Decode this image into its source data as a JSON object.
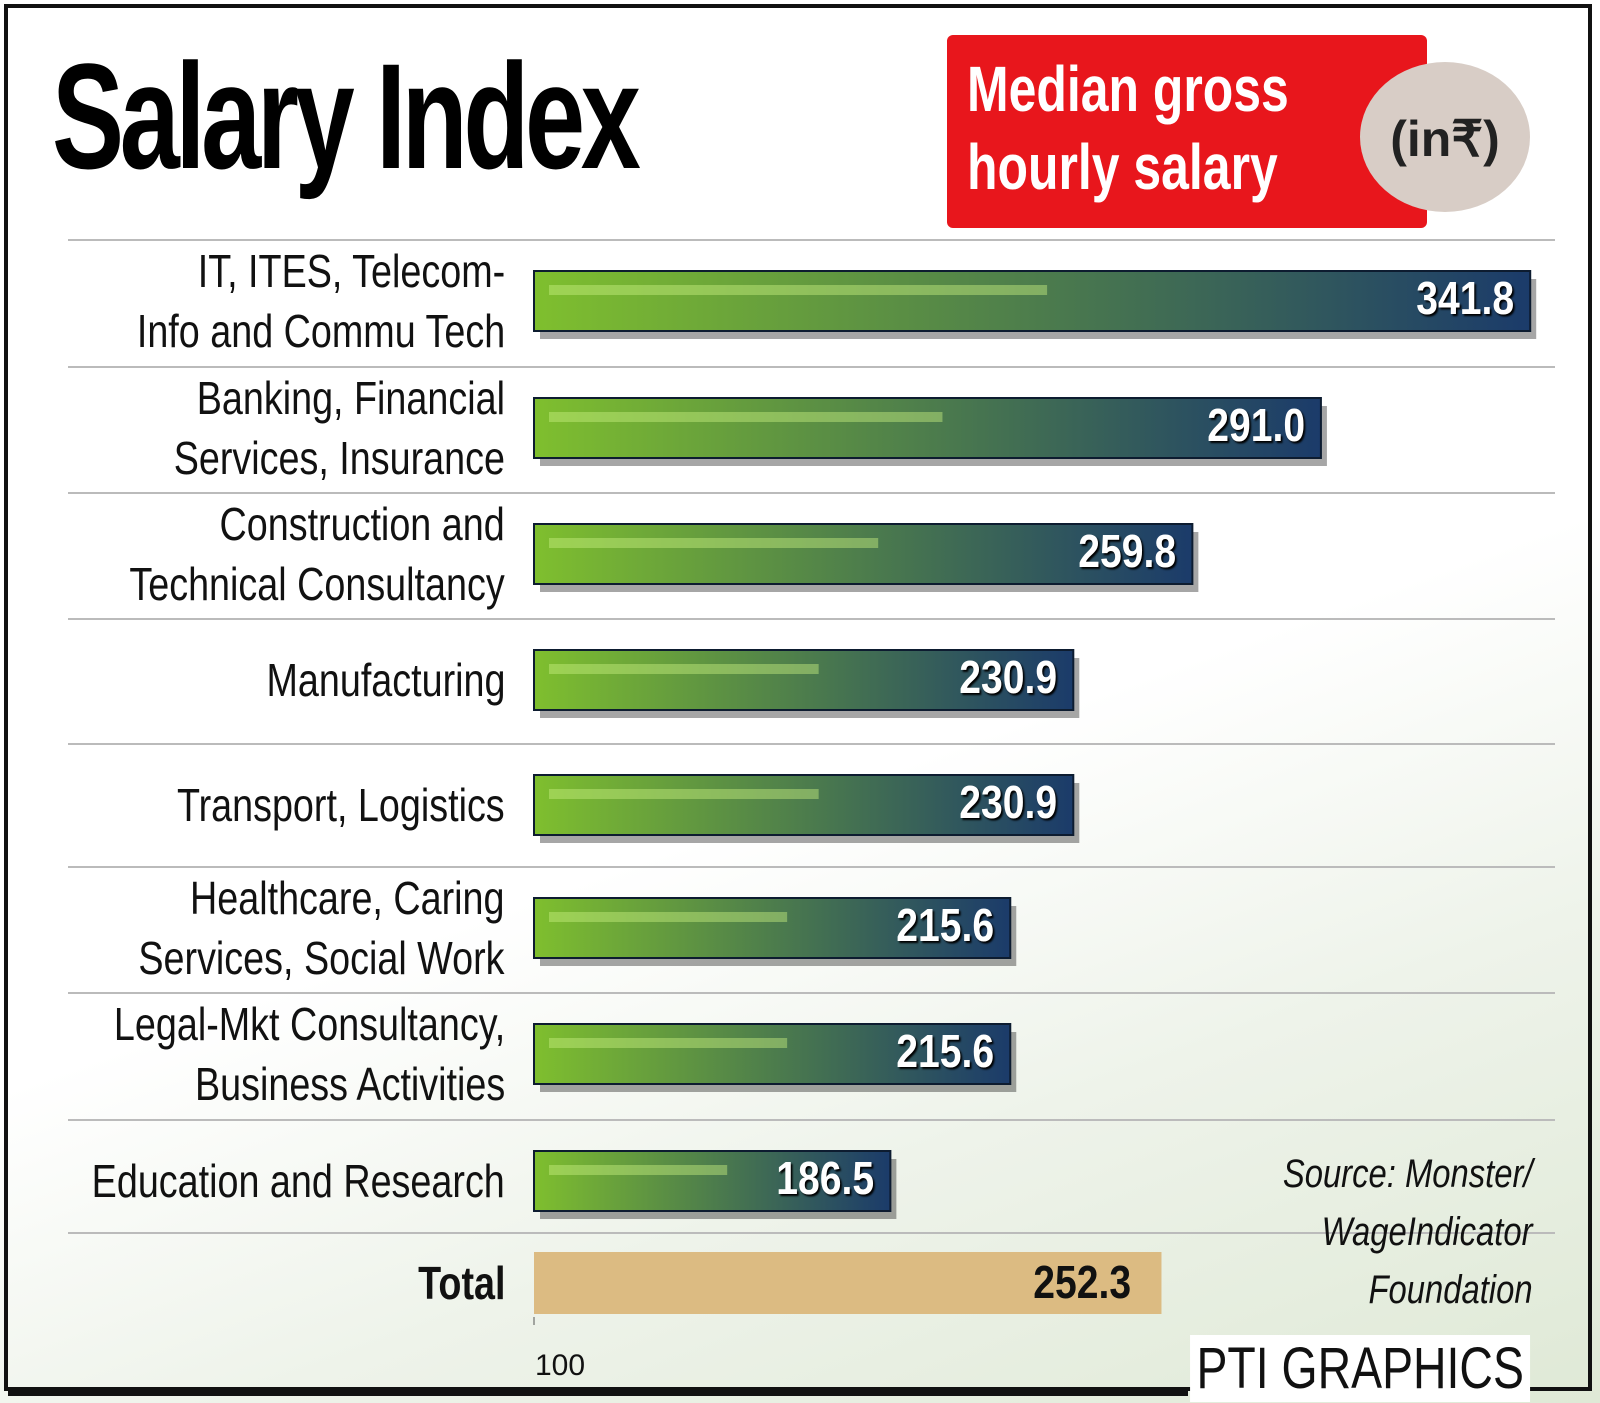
{
  "chart_data": {
    "type": "bar",
    "title": "Salary Index",
    "subtitle": "Median gross hourly salary",
    "unit": "(in₹)",
    "categories": [
      "IT, ITES, Telecom-\nInfo and Commu Tech",
      "Banking, Financial\nServices, Insurance",
      "Construction and\nTechnical Consultancy",
      "Manufacturing",
      "Transport, Logistics",
      "Healthcare, Caring\nServices, Social Work",
      "Legal-Mkt Consultancy,\nBusiness Activities",
      "Education and Research"
    ],
    "values": [
      341.8,
      291.0,
      259.8,
      230.9,
      230.9,
      215.6,
      215.6,
      186.5
    ],
    "value_labels": [
      "341.8",
      "291.0",
      "259.8",
      "230.9",
      "230.9",
      "215.6",
      "215.6",
      "186.5"
    ],
    "colors": [
      "#7fbf2e",
      "#1b3b6a"
    ],
    "total": {
      "label": "Total",
      "value": 252.3,
      "value_label": "252.3",
      "color": "#dcbb82"
    },
    "xlim": [
      100,
      350
    ],
    "xticks": [
      100
    ],
    "source": "Source: Monster/\nWageIndicator\nFoundation",
    "credit": "PTI GRAPHICS"
  }
}
